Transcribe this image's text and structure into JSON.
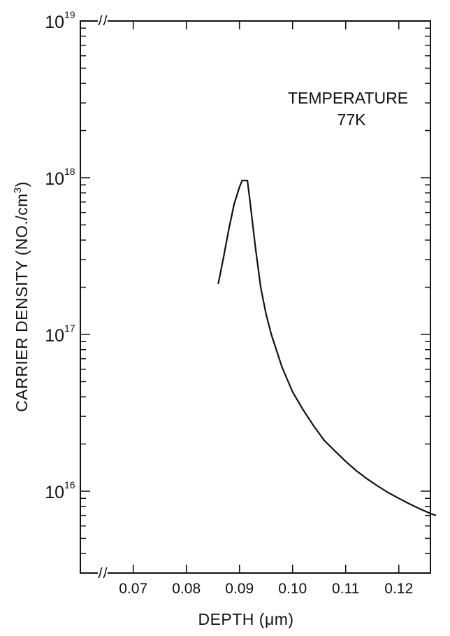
{
  "chart_data": {
    "type": "line",
    "title": "",
    "xlabel": "DEPTH (μm)",
    "ylabel": "CARRIER DENSITY (NO./cm³)",
    "ylabel_parts": {
      "main": "CARRIER DENSITY (NO./cm",
      "sup": "3",
      "close": ")"
    },
    "y_scale": "log",
    "xlim": [
      0.06,
      0.13
    ],
    "ylim": [
      3000000000000000.0,
      1e+19
    ],
    "axis_breaks": {
      "x": true,
      "y": true
    },
    "x_ticks": [
      {
        "value": 0.07,
        "label": "0.07"
      },
      {
        "value": 0.08,
        "label": "0.08"
      },
      {
        "value": 0.09,
        "label": "0.09"
      },
      {
        "value": 0.1,
        "label": "0.10"
      },
      {
        "value": 0.11,
        "label": "0.11"
      },
      {
        "value": 0.12,
        "label": "0.12"
      }
    ],
    "y_ticks": [
      {
        "value": 1e+16,
        "base": "10",
        "exp": "16"
      },
      {
        "value": 1e+17,
        "base": "10",
        "exp": "17"
      },
      {
        "value": 1e+18,
        "base": "10",
        "exp": "18"
      },
      {
        "value": 1e+19,
        "base": "10",
        "exp": "19"
      }
    ],
    "annotation": {
      "lines": [
        "TEMPERATURE",
        "77K"
      ]
    },
    "grid": false,
    "series": [
      {
        "color": "#111111",
        "points": [
          [
            0.086,
            2.1e+17
          ],
          [
            0.087,
            3.1e+17
          ],
          [
            0.088,
            4.7e+17
          ],
          [
            0.089,
            6.8e+17
          ],
          [
            0.09,
            8.7e+17
          ],
          [
            0.0905,
            9.6e+17
          ],
          [
            0.0915,
            9.6e+17
          ],
          [
            0.092,
            7e+17
          ],
          [
            0.093,
            3.6e+17
          ],
          [
            0.094,
            2e+17
          ],
          [
            0.095,
            1.35e+17
          ],
          [
            0.096,
            1e+17
          ],
          [
            0.098,
            6.2e+16
          ],
          [
            0.1,
            4.3e+16
          ],
          [
            0.102,
            3.3e+16
          ],
          [
            0.104,
            2.6e+16
          ],
          [
            0.106,
            2.1e+16
          ],
          [
            0.108,
            1.8e+16
          ],
          [
            0.11,
            1.55e+16
          ],
          [
            0.112,
            1.35e+16
          ],
          [
            0.114,
            1.2e+16
          ],
          [
            0.116,
            1.08e+16
          ],
          [
            0.118,
            9800000000000000.0
          ],
          [
            0.12,
            9000000000000000.0
          ],
          [
            0.122,
            8300000000000000.0
          ],
          [
            0.124,
            7700000000000000.0
          ],
          [
            0.126,
            7200000000000000.0
          ],
          [
            0.127,
            7000000000000000.0
          ]
        ]
      }
    ]
  }
}
